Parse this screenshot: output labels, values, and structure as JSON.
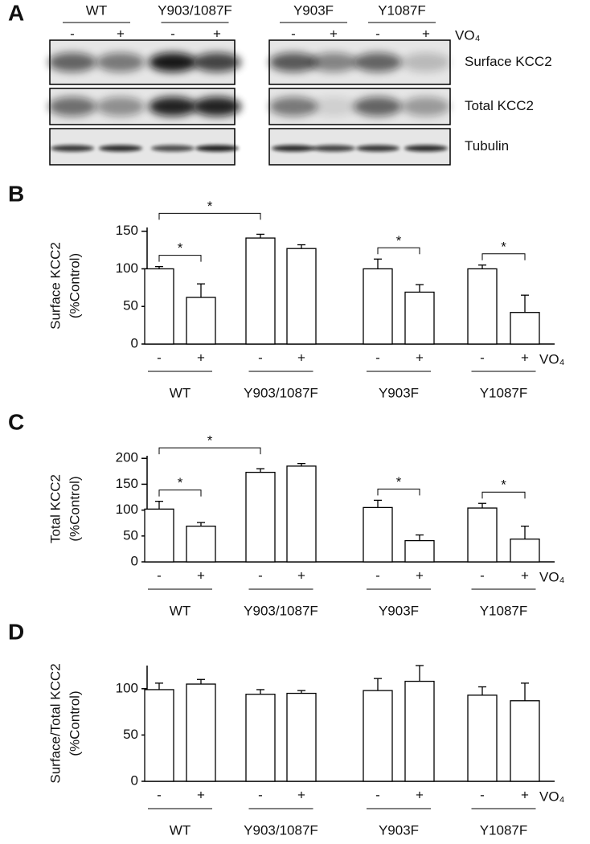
{
  "figure_a": {
    "panel": "A",
    "groups": [
      "WT",
      "Y903/1087F",
      "Y903F",
      "Y1087F"
    ],
    "lanes": [
      "-",
      "+",
      "-",
      "+",
      "-",
      "+",
      "-",
      "+"
    ],
    "treatment": "VO₄",
    "rows": [
      "Surface KCC2",
      "Total KCC2",
      "Tubulin"
    ]
  },
  "chart_data": [
    {
      "type": "bar",
      "panel": "B",
      "ylabel": [
        "Surface KCC2",
        "(%Control)"
      ],
      "categories": [
        "-",
        "+",
        "-",
        "+",
        "-",
        "+",
        "-",
        "+"
      ],
      "groups": [
        "WT",
        "Y903/1087F",
        "Y903F",
        "Y1087F"
      ],
      "treatment": "VO₄",
      "values": [
        100,
        62,
        141,
        127,
        100,
        69,
        100,
        42
      ],
      "errors": [
        3,
        18,
        5,
        5,
        13,
        10,
        5,
        23
      ],
      "ylim": [
        0,
        155
      ],
      "yticks": [
        0,
        50,
        100,
        150
      ],
      "color": "#ffffff",
      "edge_color": "#000000",
      "significance": [
        {
          "from": 0,
          "to": 1,
          "label": "*"
        },
        {
          "from": 0,
          "to": 2,
          "label": "*"
        },
        {
          "from": 4,
          "to": 5,
          "label": "*"
        },
        {
          "from": 6,
          "to": 7,
          "label": "*"
        }
      ]
    },
    {
      "type": "bar",
      "panel": "C",
      "ylabel": [
        "Total KCC2",
        "(%Control)"
      ],
      "categories": [
        "-",
        "+",
        "-",
        "+",
        "-",
        "+",
        "-",
        "+"
      ],
      "groups": [
        "WT",
        "Y903/1087F",
        "Y903F",
        "Y1087F"
      ],
      "treatment": "VO₄",
      "values": [
        102,
        69,
        173,
        185,
        105,
        41,
        104,
        44
      ],
      "errors": [
        15,
        7,
        7,
        5,
        14,
        11,
        9,
        25
      ],
      "ylim": [
        0,
        205
      ],
      "yticks": [
        0,
        50,
        100,
        150,
        200
      ],
      "color": "#ffffff",
      "edge_color": "#000000",
      "significance": [
        {
          "from": 0,
          "to": 1,
          "label": "*"
        },
        {
          "from": 0,
          "to": 2,
          "label": "*"
        },
        {
          "from": 4,
          "to": 5,
          "label": "*"
        },
        {
          "from": 6,
          "to": 7,
          "label": "*"
        }
      ]
    },
    {
      "type": "bar",
      "panel": "D",
      "ylabel": [
        "Surface/Total KCC2",
        "(%Control)"
      ],
      "categories": [
        "-",
        "+",
        "-",
        "+",
        "-",
        "+",
        "-",
        "+"
      ],
      "groups": [
        "WT",
        "Y903/1087F",
        "Y903F",
        "Y1087F"
      ],
      "treatment": "VO₄",
      "values": [
        99,
        105,
        94,
        95,
        98,
        108,
        93,
        87
      ],
      "errors": [
        7,
        5,
        5,
        3,
        13,
        17,
        9,
        19
      ],
      "ylim": [
        0,
        125
      ],
      "yticks": [
        0,
        50,
        100
      ],
      "color": "#ffffff",
      "edge_color": "#000000",
      "significance": []
    }
  ]
}
